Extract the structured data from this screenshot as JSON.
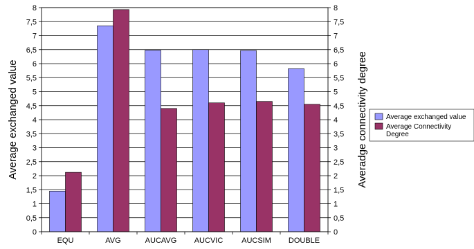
{
  "chart_data": {
    "type": "bar",
    "categories": [
      "EQU",
      "AVG",
      "AUCAVG",
      "AUCVIC",
      "AUCSIM",
      "DOUBLE"
    ],
    "series": [
      {
        "name": "Average exchanged value",
        "color": "#9999FF",
        "values": [
          1.45,
          7.35,
          6.48,
          6.5,
          6.47,
          5.82
        ]
      },
      {
        "name": "Average Connectivity Degree",
        "color": "#993366",
        "values": [
          2.12,
          7.93,
          4.4,
          4.6,
          4.65,
          4.55
        ]
      }
    ],
    "ylabel": "Average exchanged value",
    "y2label": "Averadge connectivity degree",
    "ylim": [
      0,
      8
    ],
    "y2lim": [
      0,
      8
    ],
    "ytick_labels": [
      "0",
      "0,5",
      "1",
      "1,5",
      "2",
      "2,5",
      "3",
      "3,5",
      "4",
      "4,5",
      "5",
      "5,5",
      "6",
      "6,5",
      "7",
      "7,5",
      "8"
    ],
    "legend_entries": [
      "Average exchanged value",
      "Average Connectivity",
      "Degree"
    ],
    "legend_position": "right",
    "grid": true
  }
}
